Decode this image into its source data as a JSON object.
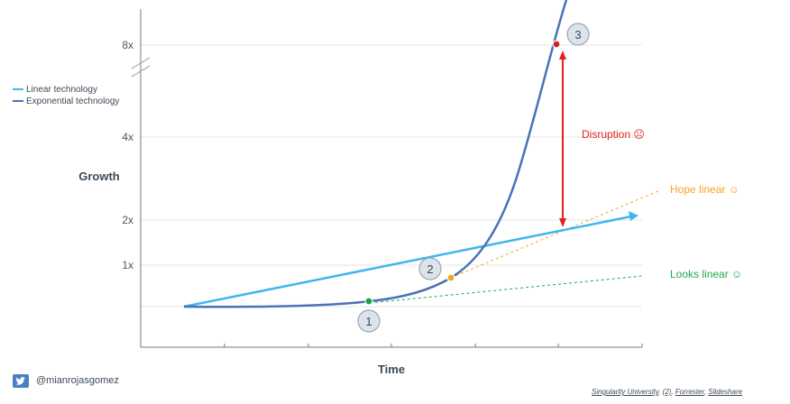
{
  "chart_data": {
    "type": "line",
    "title": "",
    "xlabel": "Time",
    "ylabel": "Growth",
    "yticks": [
      "1x",
      "2x",
      "4x",
      "8x"
    ],
    "series": [
      {
        "name": "Linear technology",
        "color": "#3fb6ee"
      },
      {
        "name": "Exponential technology",
        "color": "#4a72b8"
      }
    ],
    "points": [
      {
        "label": "1",
        "color": "#1aa34a"
      },
      {
        "label": "2",
        "color": "#f2a81d"
      },
      {
        "label": "3",
        "color": "#d0201f"
      }
    ],
    "annotations": {
      "disruption": {
        "text": "Disruption ☹",
        "color": "#e2201f"
      },
      "hope_linear": {
        "text": "Hope linear ☺",
        "color": "#f5a623"
      },
      "looks_linear": {
        "text": "Looks linear ☺",
        "color": "#22a84a"
      }
    }
  },
  "footer": {
    "handle": "@mianrojasgomez",
    "sources": [
      "Singularity University",
      "(2)",
      "Forrester",
      "Slideshare"
    ],
    "twitter_icon": "twitter-icon"
  }
}
